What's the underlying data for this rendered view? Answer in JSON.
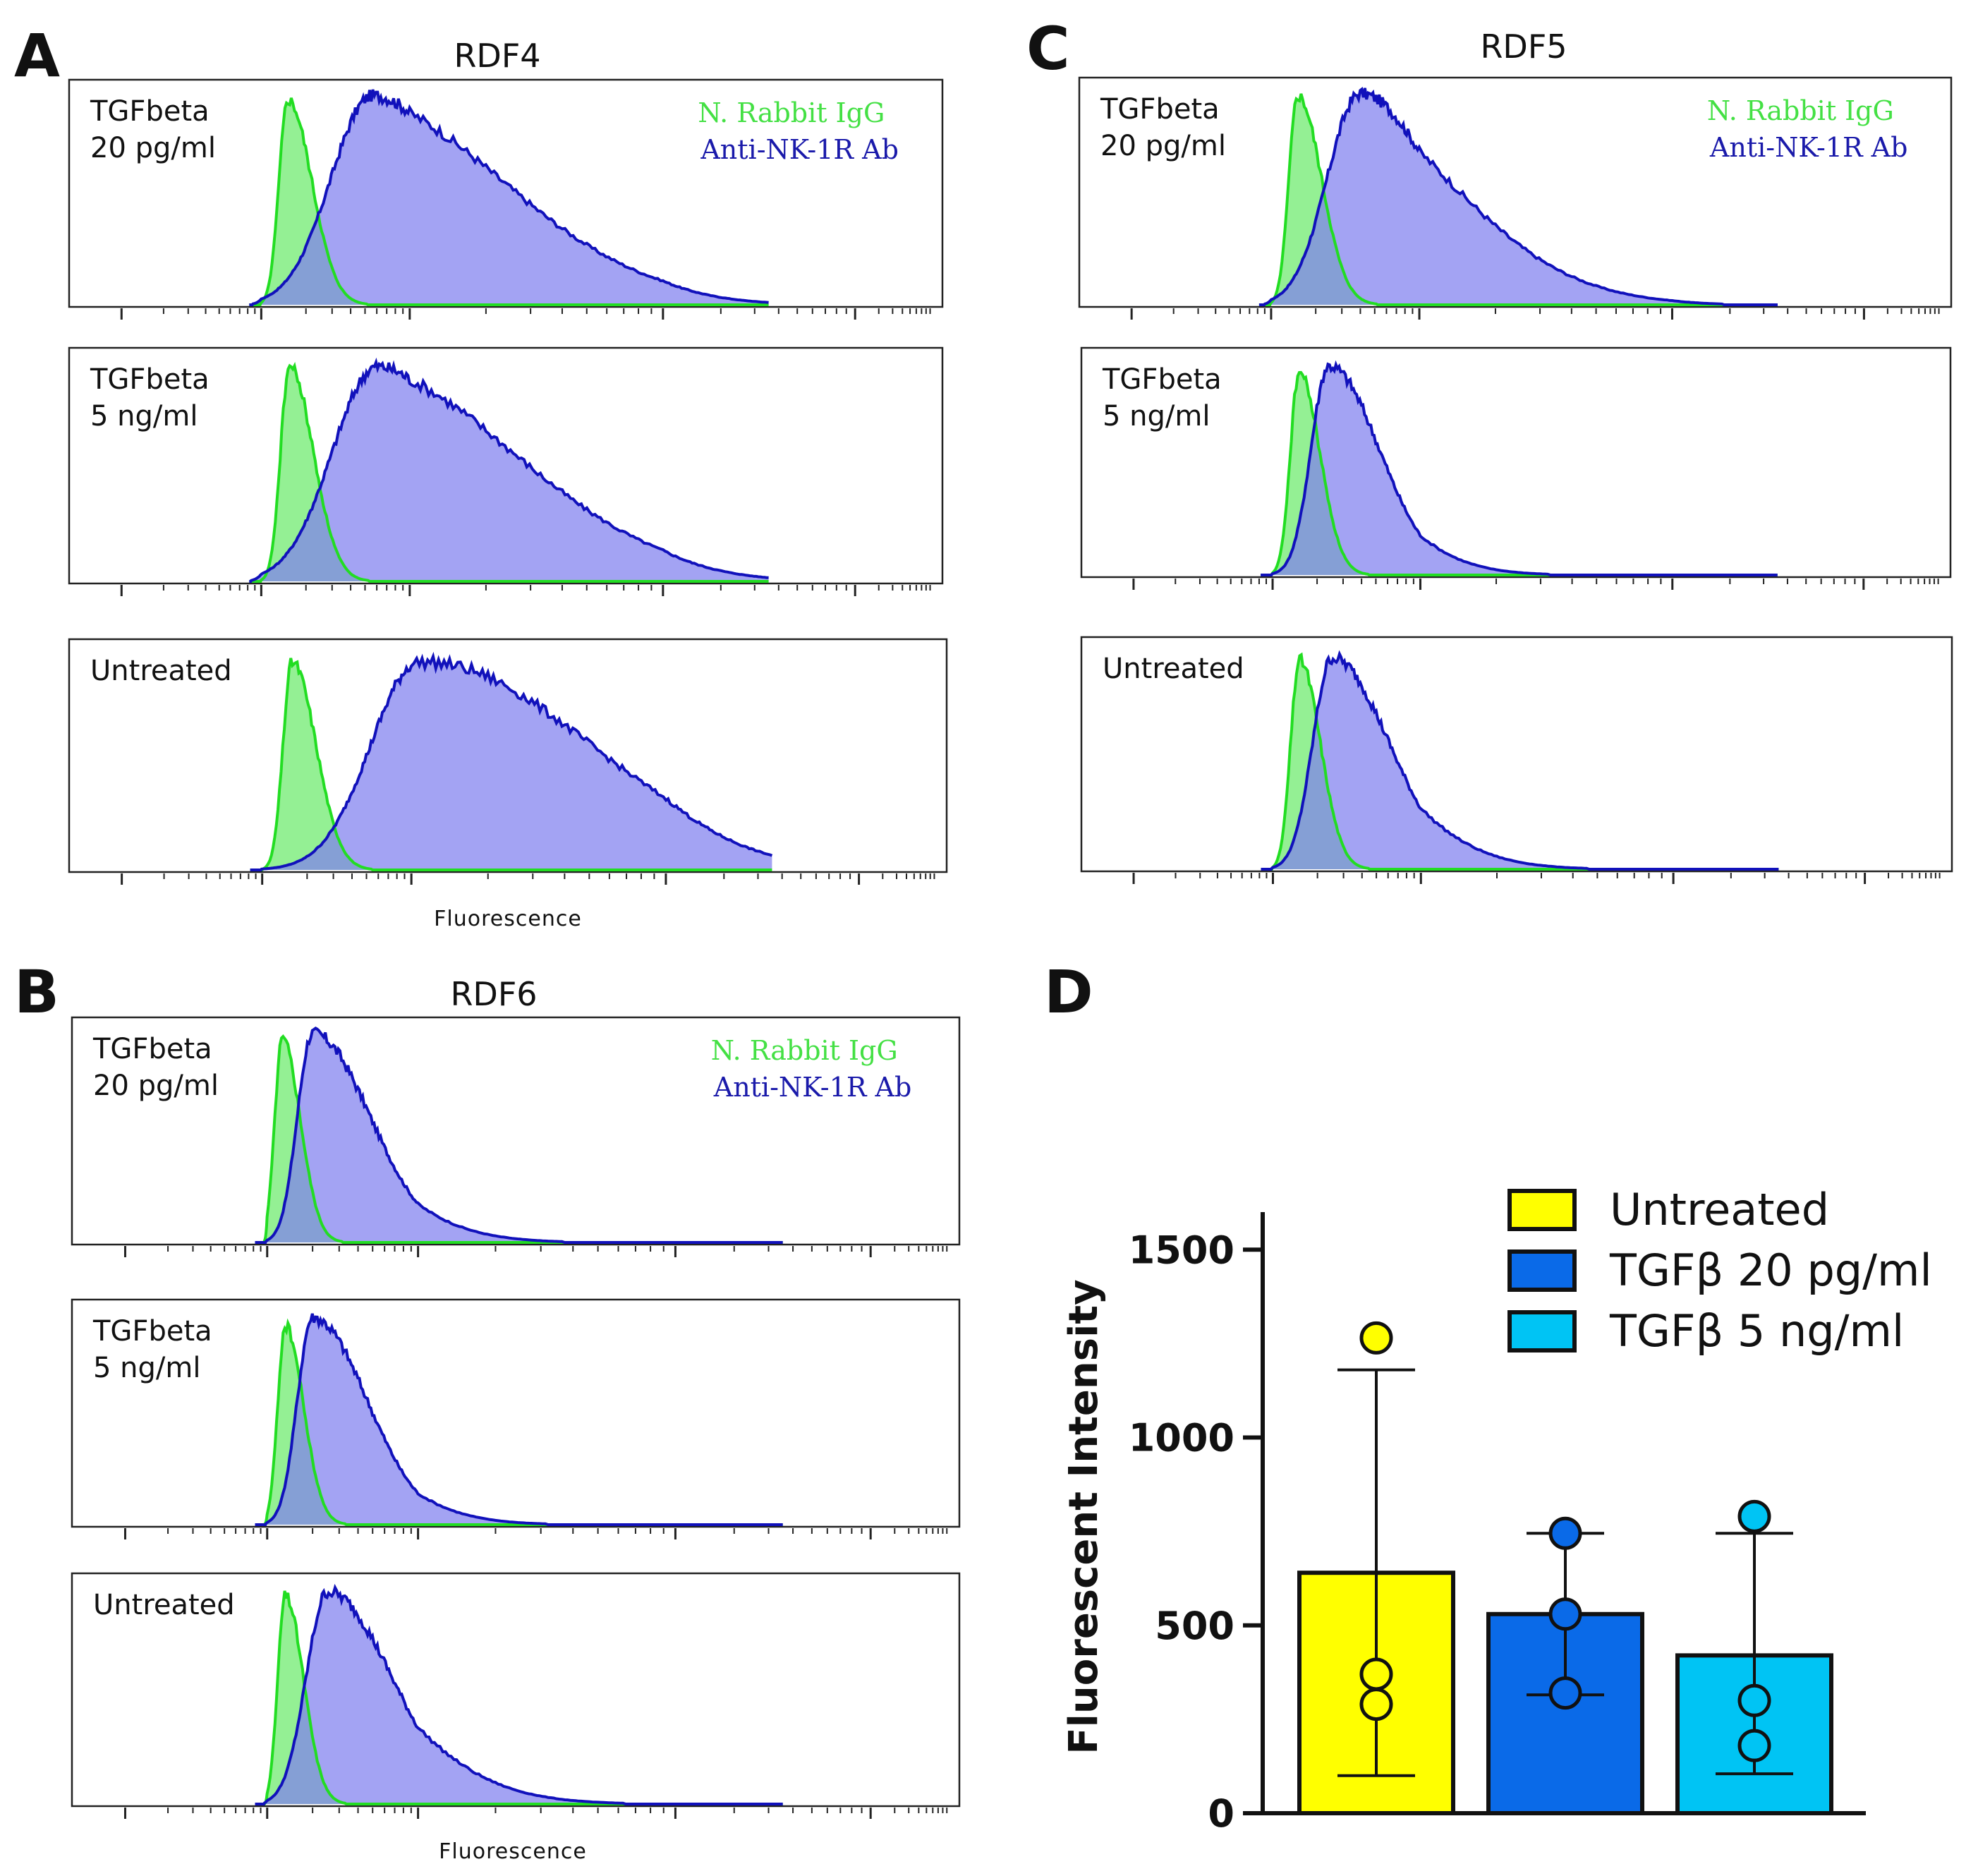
{
  "panels": {
    "A": {
      "letter": "A",
      "title": "RDF4",
      "axis_label": "Fluorescence"
    },
    "B": {
      "letter": "B",
      "title": "RDF6",
      "axis_label": "Fluorescence"
    },
    "C": {
      "letter": "C",
      "title": "RDF5"
    },
    "D": {
      "letter": "D"
    }
  },
  "conditions": {
    "tgf20_line1": "TGFbeta",
    "tgf20_line2": "20 pg/ml",
    "tgf5_line1": "TGFbeta",
    "tgf5_line2": "5 ng/ml",
    "untreated": "Untreated"
  },
  "histogram_legend": {
    "igg": "N. Rabbit IgG",
    "ab": "Anti-NK-1R Ab"
  },
  "colors": {
    "igg_line": "#22dd22",
    "igg_fill": "#88ee88",
    "ab_line": "#1111bb",
    "ab_fill": "#8080ee",
    "untreated": "#ffff00",
    "tgf20": "#0a6ae8",
    "tgf5": "#00c4f4"
  },
  "chart_data": [
    {
      "type": "area",
      "title": "RDF4",
      "xlabel": "Fluorescence",
      "x_scale": "log",
      "xlim": [
        -1.3,
        4.5
      ],
      "series": [
        {
          "name": "N. Rabbit IgG",
          "condition": "TGFbeta 20 pg/ml",
          "peak_log10": 0.18,
          "spread": [
            0.06,
            0.16
          ],
          "rel_height": 0.96
        },
        {
          "name": "Anti-NK-1R Ab",
          "condition": "TGFbeta 20 pg/ml",
          "peak_log10": 0.75,
          "spread": [
            0.28,
            0.6
          ],
          "rel_height": 0.98
        },
        {
          "name": "N. Rabbit IgG",
          "condition": "TGFbeta 5 ng/ml",
          "peak_log10": 0.19,
          "spread": [
            0.06,
            0.16
          ],
          "rel_height": 0.97
        },
        {
          "name": "Anti-NK-1R Ab",
          "condition": "TGFbeta 5 ng/ml",
          "peak_log10": 0.78,
          "spread": [
            0.3,
            0.62
          ],
          "rel_height": 0.97
        },
        {
          "name": "N. Rabbit IgG",
          "condition": "Untreated",
          "peak_log10": 0.2,
          "spread": [
            0.06,
            0.16
          ],
          "rel_height": 0.95
        },
        {
          "name": "Anti-NK-1R Ab",
          "condition": "Untreated",
          "peak_log10": 1.05,
          "spread": [
            0.32,
            0.65
          ],
          "rel_height": 0.95
        }
      ]
    },
    {
      "type": "area",
      "title": "RDF5",
      "xlabel": "",
      "x_scale": "log",
      "xlim": [
        -1.3,
        4.5
      ],
      "series": [
        {
          "name": "N. Rabbit IgG",
          "condition": "TGFbeta 20 pg/ml",
          "peak_log10": 0.18,
          "spread": [
            0.06,
            0.16
          ],
          "rel_height": 0.97
        },
        {
          "name": "Anti-NK-1R Ab",
          "condition": "TGFbeta 20 pg/ml",
          "peak_log10": 0.6,
          "spread": [
            0.22,
            0.5
          ],
          "rel_height": 0.98
        },
        {
          "name": "N. Rabbit IgG",
          "condition": "TGFbeta 5 ng/ml",
          "peak_log10": 0.18,
          "spread": [
            0.06,
            0.14
          ],
          "rel_height": 0.94
        },
        {
          "name": "Anti-NK-1R Ab",
          "condition": "TGFbeta 5 ng/ml",
          "peak_log10": 0.38,
          "spread": [
            0.12,
            0.34
          ],
          "rel_height": 0.97
        },
        {
          "name": "N. Rabbit IgG",
          "condition": "Untreated",
          "peak_log10": 0.18,
          "spread": [
            0.06,
            0.14
          ],
          "rel_height": 0.95
        },
        {
          "name": "Anti-NK-1R Ab",
          "condition": "Untreated",
          "peak_log10": 0.4,
          "spread": [
            0.13,
            0.38
          ],
          "rel_height": 0.96
        }
      ]
    },
    {
      "type": "area",
      "title": "RDF6",
      "xlabel": "Fluorescence",
      "x_scale": "log",
      "xlim": [
        -1.3,
        4.5
      ],
      "series": [
        {
          "name": "N. Rabbit IgG",
          "condition": "TGFbeta 20 pg/ml",
          "peak_log10": 0.1,
          "spread": [
            0.05,
            0.12
          ],
          "rel_height": 0.95
        },
        {
          "name": "Anti-NK-1R Ab",
          "condition": "TGFbeta 20 pg/ml",
          "peak_log10": 0.3,
          "spread": [
            0.1,
            0.38
          ],
          "rel_height": 0.98
        },
        {
          "name": "N. Rabbit IgG",
          "condition": "TGFbeta 5 ng/ml",
          "peak_log10": 0.12,
          "spread": [
            0.05,
            0.12
          ],
          "rel_height": 0.93
        },
        {
          "name": "Anti-NK-1R Ab",
          "condition": "TGFbeta 5 ng/ml",
          "peak_log10": 0.3,
          "spread": [
            0.1,
            0.36
          ],
          "rel_height": 0.97
        },
        {
          "name": "N. Rabbit IgG",
          "condition": "Untreated",
          "peak_log10": 0.12,
          "spread": [
            0.05,
            0.12
          ],
          "rel_height": 0.95
        },
        {
          "name": "Anti-NK-1R Ab",
          "condition": "Untreated",
          "peak_log10": 0.4,
          "spread": [
            0.14,
            0.42
          ],
          "rel_height": 0.97
        }
      ]
    },
    {
      "type": "bar",
      "title": "",
      "xlabel": "",
      "ylabel": "Fluorescent Intensity",
      "categories": [
        "Untreated",
        "TGFβ 20 pg/ml",
        "TGFβ 5 ng/ml"
      ],
      "values": [
        640,
        530,
        420
      ],
      "error_high": [
        1180,
        745,
        745
      ],
      "error_low": [
        100,
        315,
        105
      ],
      "points": [
        [
          1265,
          370,
          290
        ],
        [
          745,
          530,
          320
        ],
        [
          790,
          300,
          180
        ]
      ],
      "ylim": [
        0,
        1600
      ],
      "yticks": [
        0,
        500,
        1000,
        1500
      ],
      "ytick_labels": [
        "0",
        "500",
        "1000",
        "1500"
      ],
      "legend": [
        "Untreated",
        "TGFβ 20 pg/ml",
        "TGFβ 5 ng/ml"
      ]
    }
  ]
}
